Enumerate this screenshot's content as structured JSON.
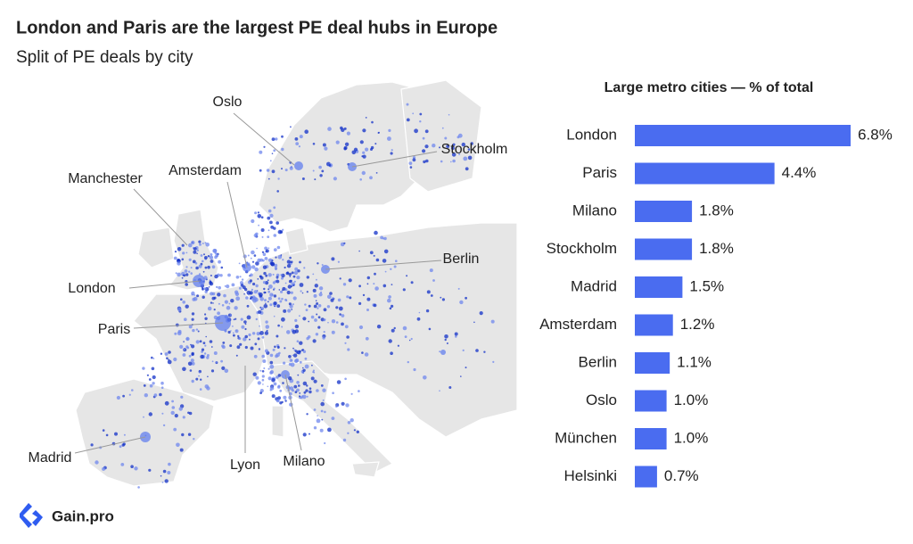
{
  "title": "London and Paris are the largest PE deal hubs in Europe",
  "subtitle": "Split of PE deals by city",
  "map": {
    "labels": [
      "Oslo",
      "Stockholm",
      "Manchester",
      "Amsterdam",
      "Berlin",
      "London",
      "Paris",
      "Madrid",
      "Lyon",
      "Milano"
    ]
  },
  "chart_data": {
    "type": "bar",
    "orientation": "horizontal",
    "title": "Large metro cities — % of total",
    "categories": [
      "London",
      "Paris",
      "Milano",
      "Stockholm",
      "Madrid",
      "Amsterdam",
      "Berlin",
      "Oslo",
      "München",
      "Helsinki"
    ],
    "values": [
      6.8,
      4.4,
      1.8,
      1.8,
      1.5,
      1.2,
      1.1,
      1.0,
      1.0,
      0.7
    ],
    "value_labels": [
      "6.8%",
      "4.4%",
      "1.8%",
      "1.8%",
      "1.5%",
      "1.2%",
      "1.1%",
      "1.0%",
      "1.0%",
      "0.7%"
    ],
    "color": "#4a6cf0"
  },
  "brand": "Gain.pro"
}
